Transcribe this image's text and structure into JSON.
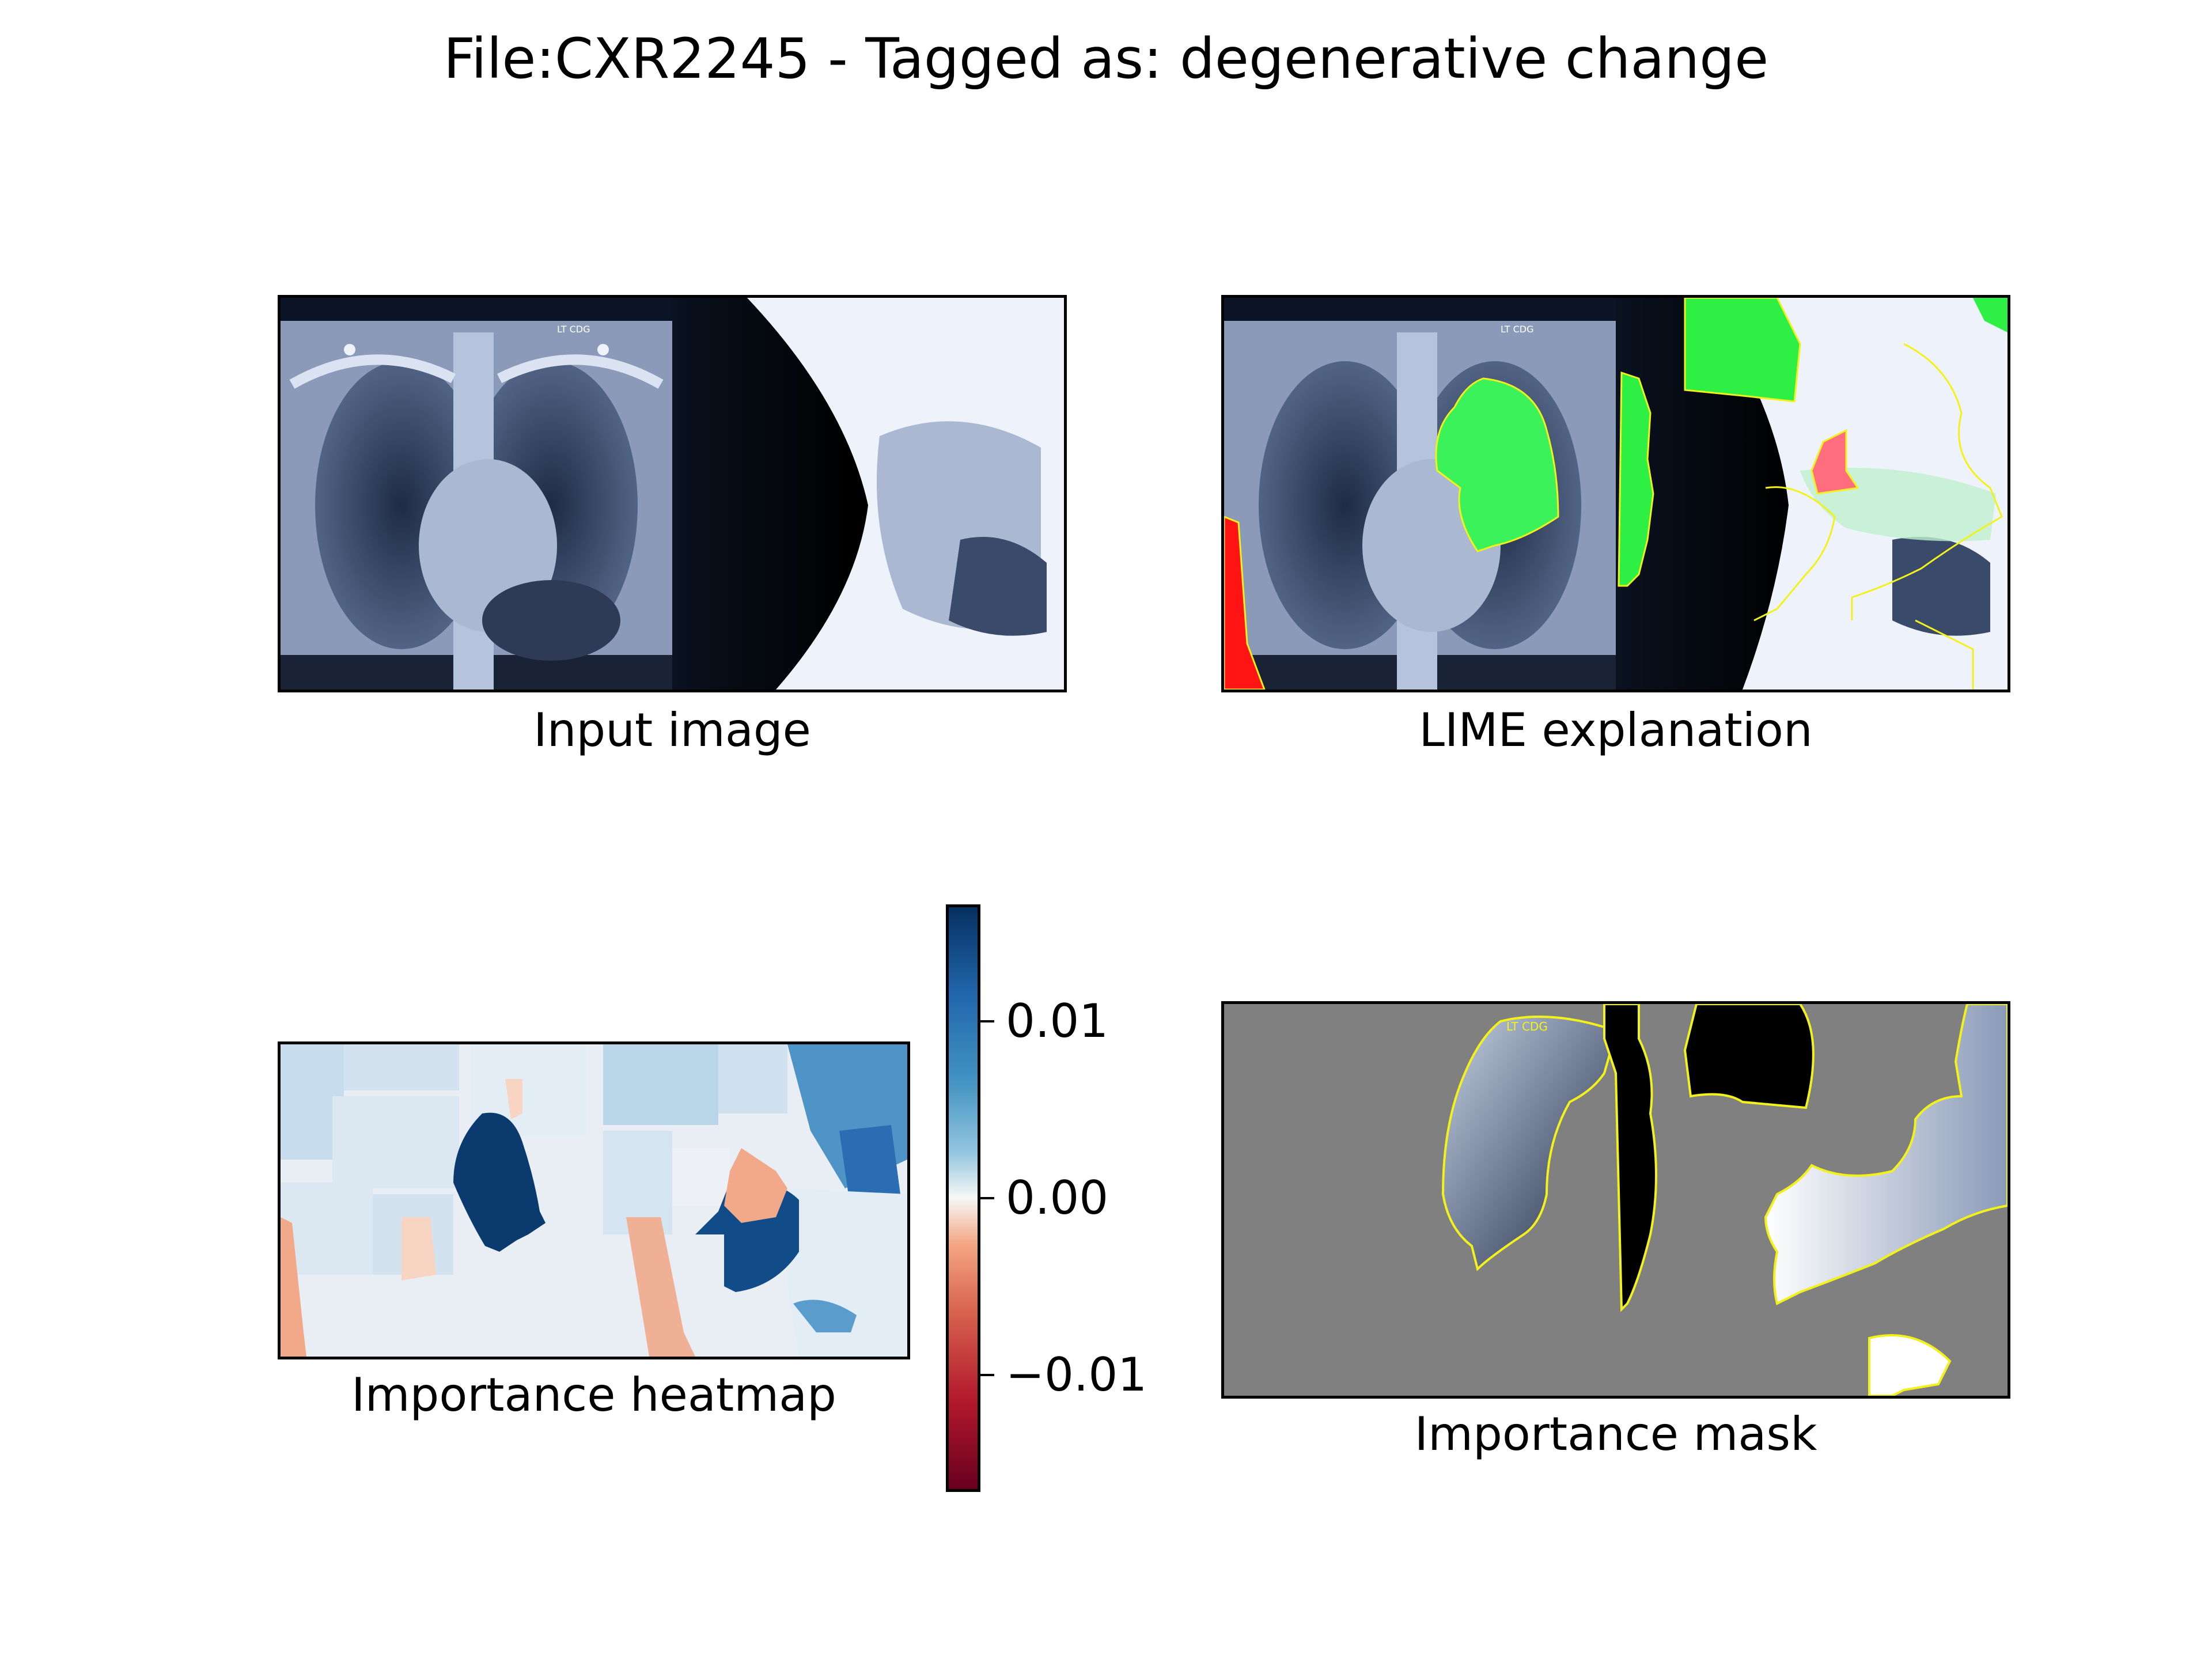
{
  "figure": {
    "title": "File:CXR2245 - Tagged as: degenerative change"
  },
  "chart_data": [
    {
      "type": "image",
      "caption": "Input image"
    },
    {
      "type": "image",
      "caption": "LIME explanation"
    },
    {
      "type": "heatmap",
      "caption": "Importance heatmap",
      "colormap": "RdBu",
      "colorbar": {
        "range": [
          -0.016,
          0.016
        ],
        "ticks": [
          0.01,
          0.0,
          -0.01
        ],
        "tick_labels": [
          "0.01",
          "0.00",
          "−0.01"
        ]
      }
    },
    {
      "type": "image",
      "caption": "Importance mask"
    }
  ]
}
